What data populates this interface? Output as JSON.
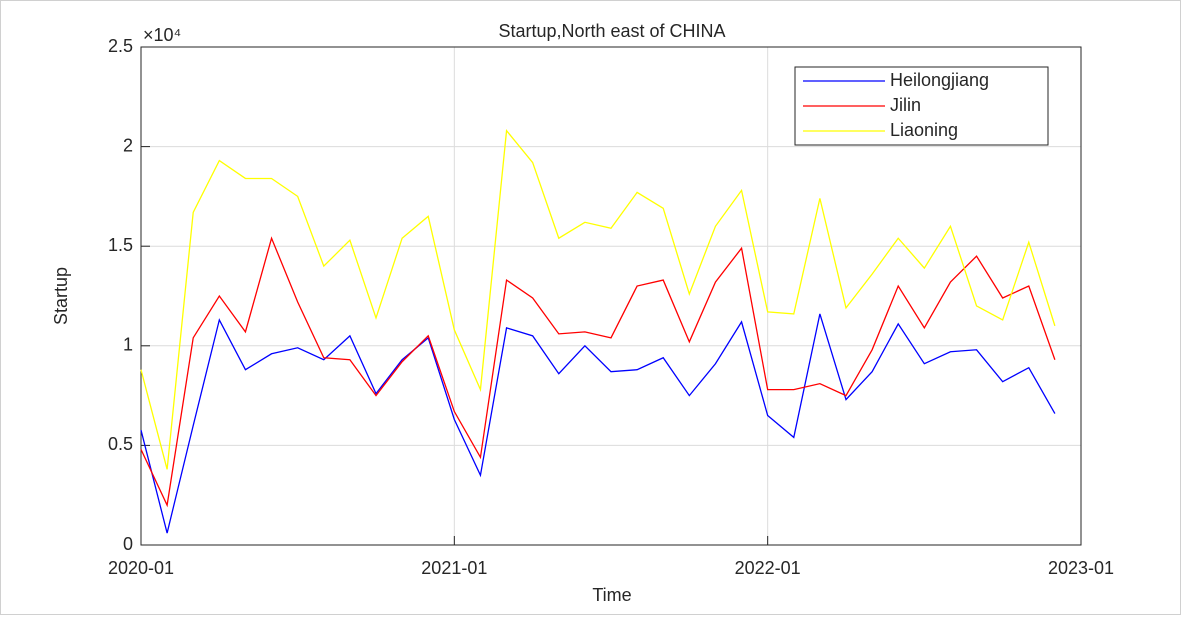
{
  "chart_data": {
    "type": "line",
    "title": "Startup,North east of CHINA",
    "x_label": "Time",
    "y_label": "Startup",
    "y_exponent": "×10⁴",
    "x": [
      "2020-01",
      "2020-02",
      "2020-03",
      "2020-04",
      "2020-05",
      "2020-06",
      "2020-07",
      "2020-08",
      "2020-09",
      "2020-10",
      "2020-11",
      "2020-12",
      "2021-01",
      "2021-02",
      "2021-03",
      "2021-04",
      "2021-05",
      "2021-06",
      "2021-07",
      "2021-08",
      "2021-09",
      "2021-10",
      "2021-11",
      "2021-12",
      "2022-01",
      "2022-02",
      "2022-03",
      "2022-04",
      "2022-05",
      "2022-06",
      "2022-07",
      "2022-08",
      "2022-09",
      "2022-10",
      "2022-11",
      "2022-12"
    ],
    "xlim": [
      "2020-01",
      "2023-01"
    ],
    "xticks": [
      "2020-01",
      "2021-01",
      "2022-01",
      "2023-01"
    ],
    "ylim": [
      0,
      25000
    ],
    "yticks": [
      {
        "value": 0,
        "label": "0"
      },
      {
        "value": 5000,
        "label": "0.5"
      },
      {
        "value": 10000,
        "label": "1"
      },
      {
        "value": 15000,
        "label": "1.5"
      },
      {
        "value": 20000,
        "label": "2"
      },
      {
        "value": 25000,
        "label": "2.5"
      }
    ],
    "grid": true,
    "legend": "upper right",
    "series": [
      {
        "name": "Heilongjiang",
        "color": "#0000ff",
        "values": [
          5770,
          600,
          6000,
          11300,
          8800,
          9600,
          9900,
          9300,
          10500,
          7600,
          9300,
          10400,
          6300,
          3500,
          10900,
          10500,
          8600,
          10000,
          8700,
          8800,
          9400,
          7500,
          9100,
          11200,
          6500,
          5400,
          11600,
          7300,
          8700,
          11100,
          9100,
          9700,
          9800,
          8200,
          8900,
          6600
        ]
      },
      {
        "name": "Jilin",
        "color": "#ff0000",
        "values": [
          4800,
          2000,
          10400,
          12500,
          10700,
          15400,
          12200,
          9400,
          9300,
          7500,
          9200,
          10500,
          6700,
          4400,
          13300,
          12400,
          10600,
          10700,
          10400,
          13000,
          13300,
          10200,
          13200,
          14900,
          7800,
          7800,
          8100,
          7500,
          9800,
          13000,
          10900,
          13200,
          14500,
          12400,
          13000,
          9300
        ]
      },
      {
        "name": "Liaoning",
        "color": "#ffff00",
        "values": [
          8800,
          3800,
          16700,
          19300,
          18400,
          18400,
          17500,
          14000,
          15300,
          11400,
          15400,
          16500,
          10800,
          7800,
          20800,
          19200,
          15400,
          16200,
          15900,
          17700,
          16900,
          12600,
          16000,
          17800,
          11700,
          11600,
          17400,
          11900,
          13600,
          15400,
          13900,
          16000,
          12000,
          11300,
          15200,
          11000
        ]
      }
    ]
  }
}
